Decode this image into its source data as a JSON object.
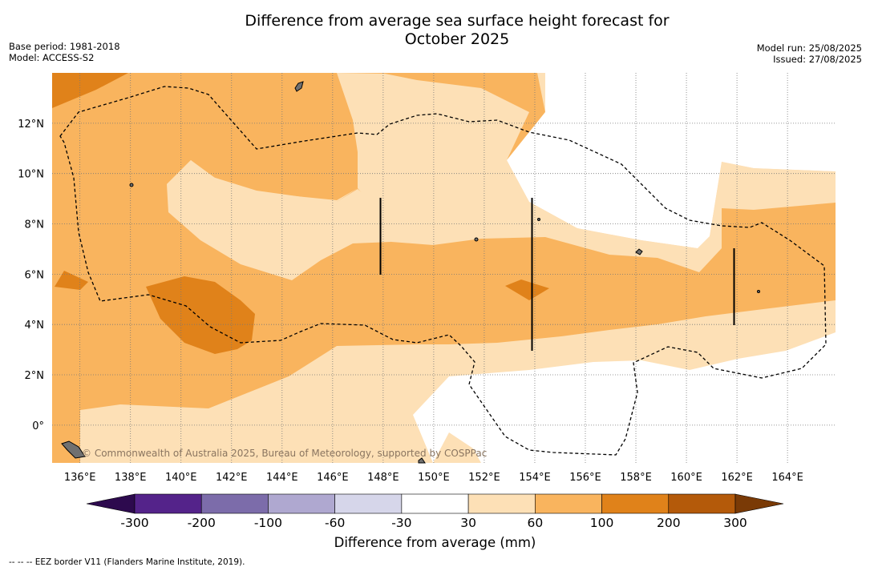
{
  "title_line1": "Difference from average sea surface height forecast for",
  "title_line2": "October 2025",
  "base_period": "Base period: 1981-2018",
  "model": "Model: ACCESS-S2",
  "model_run": "Model run: 25/08/2025",
  "issued": "Issued: 27/08/2025",
  "credit": "© Commonwealth of Australia 2025, Bureau of Meteorology, supported by COSPPac",
  "footnote": "--  --  -- EEZ border V11 (Flanders Marine Institute, 2019).",
  "colorbar": {
    "title": "Difference from average (mm)",
    "tick_labels": [
      "-300",
      "-200",
      "-100",
      "-60",
      "-30",
      "30",
      "60",
      "100",
      "200",
      "300"
    ],
    "colors": [
      "#2d0a4e",
      "#54238a",
      "#7c6caa",
      "#afa8d0",
      "#d6d6ea",
      "#ffffff",
      "#fde0b6",
      "#f9b45e",
      "#e0821a",
      "#b45a0a",
      "#7a3a06"
    ]
  },
  "map": {
    "lon_labels": [
      "136°E",
      "138°E",
      "140°E",
      "142°E",
      "144°E",
      "146°E",
      "148°E",
      "150°E",
      "152°E",
      "154°E",
      "156°E",
      "158°E",
      "160°E",
      "162°E",
      "164°E"
    ],
    "lat_labels": [
      "12°N",
      "10°N",
      "8°N",
      "6°N",
      "4°N",
      "2°N",
      "0°"
    ],
    "lon_values": [
      136,
      138,
      140,
      142,
      144,
      146,
      148,
      150,
      152,
      154,
      156,
      158,
      160,
      162,
      164
    ],
    "lat_values": [
      12,
      10,
      8,
      6,
      4,
      2,
      0
    ],
    "lon_range": [
      134.9,
      165.9
    ],
    "lat_range": [
      -1.5,
      14
    ]
  }
}
